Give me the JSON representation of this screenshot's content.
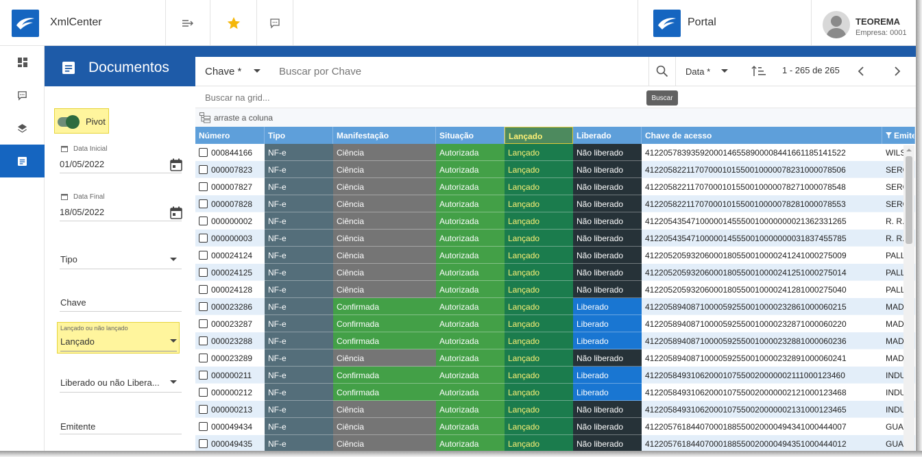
{
  "topbar": {
    "app_title": "XmlCenter",
    "portal_title": "Portal",
    "user_name": "TEOREMA",
    "user_company": "Empresa: 0001"
  },
  "rail": {
    "items": [
      "dashboard-icon",
      "chat-icon",
      "layers-icon",
      "document-icon"
    ],
    "active_index": 3
  },
  "filters": {
    "header_title": "Documentos",
    "pivot_label": "Pivot",
    "pivot_on": true,
    "data_inicial_label": "Data Inicial",
    "data_inicial_value": "01/05/2022",
    "data_final_label": "Data Final",
    "data_final_value": "18/05/2022",
    "tipo_label": "Tipo",
    "chave_label": "Chave",
    "lancado_label": "Lançado ou não lançado",
    "lancado_value": "Lançado",
    "liberado_label": "Liberado ou não Libera...",
    "emitente_label": "Emitente"
  },
  "search": {
    "field_selector": "Chave *",
    "placeholder": "Buscar por Chave",
    "sort_field": "Data *",
    "pagination": "1 - 265 de 265",
    "tooltip": "Buscar",
    "grid_placeholder": "Buscar na grid...",
    "group_hint": "arraste a coluna"
  },
  "grid": {
    "columns": [
      "Número",
      "Tipo",
      "Manifestação",
      "Situação",
      "Lançado",
      "Liberado",
      "Chave de acesso",
      "Emitente"
    ],
    "rows": [
      [
        "000844166",
        "NF-e",
        "Ciência",
        "Autorizada",
        "Lançado",
        "Não liberado",
        "41220578393592000146558900008441661185141522",
        "WILS"
      ],
      [
        "000007823",
        "NF-e",
        "Ciência",
        "Autorizada",
        "Lançado",
        "Não liberado",
        "41220582211707000101550010000078231000078506",
        "SERG"
      ],
      [
        "000007827",
        "NF-e",
        "Ciência",
        "Autorizada",
        "Lançado",
        "Não liberado",
        "41220582211707000101550010000078271000078548",
        "SERG"
      ],
      [
        "000007828",
        "NF-e",
        "Ciência",
        "Autorizada",
        "Lançado",
        "Não liberado",
        "41220582211707000101550010000078281000078553",
        "SERG"
      ],
      [
        "000000002",
        "NF-e",
        "Ciência",
        "Autorizada",
        "Lançado",
        "Não liberado",
        "41220543547100000145550010000000021362331265",
        "R. R."
      ],
      [
        "000000003",
        "NF-e",
        "Ciência",
        "Autorizada",
        "Lançado",
        "Não liberado",
        "41220543547100000145550010000000031837455785",
        "R. R."
      ],
      [
        "000024124",
        "NF-e",
        "Ciência",
        "Autorizada",
        "Lançado",
        "Não liberado",
        "41220520593206000180550010000241241000275009",
        "PALL"
      ],
      [
        "000024125",
        "NF-e",
        "Ciência",
        "Autorizada",
        "Lançado",
        "Não liberado",
        "41220520593206000180550010000241251000275014",
        "PALL"
      ],
      [
        "000024128",
        "NF-e",
        "Ciência",
        "Autorizada",
        "Lançado",
        "Não liberado",
        "41220520593206000180550010000241281000275040",
        "PALL"
      ],
      [
        "000023286",
        "NF-e",
        "Confirmada",
        "Autorizada",
        "Lançado",
        "Liberado",
        "41220589408710000592550010000232861000060215",
        "MAD"
      ],
      [
        "000023287",
        "NF-e",
        "Confirmada",
        "Autorizada",
        "Lançado",
        "Liberado",
        "41220589408710000592550010000232871000060220",
        "MAD"
      ],
      [
        "000023288",
        "NF-e",
        "Confirmada",
        "Autorizada",
        "Lançado",
        "Liberado",
        "41220589408710000592550010000232881000060236",
        "MAD"
      ],
      [
        "000023289",
        "NF-e",
        "Ciência",
        "Autorizada",
        "Lançado",
        "Não liberado",
        "41220589408710000592550010000232891000060241",
        "MAD"
      ],
      [
        "000000211",
        "NF-e",
        "Confirmada",
        "Autorizada",
        "Lançado",
        "Liberado",
        "41220584931062000107550020000002111000123460",
        "INDU"
      ],
      [
        "000000212",
        "NF-e",
        "Confirmada",
        "Autorizada",
        "Lançado",
        "Liberado",
        "41220584931062000107550020000002121000123468",
        "INDU"
      ],
      [
        "000000213",
        "NF-e",
        "Ciência",
        "Autorizada",
        "Lançado",
        "Não liberado",
        "41220584931062000107550020000002131000123465",
        "INDU"
      ],
      [
        "000049434",
        "NF-e",
        "Ciência",
        "Autorizada",
        "Lançado",
        "Não liberado",
        "41220576184407000188550020000494341000444007",
        "GUAI"
      ],
      [
        "000049435",
        "NF-e",
        "Ciência",
        "Autorizada",
        "Lançado",
        "Não liberado",
        "41220576184407000188550020000494351000444012",
        "GUAI"
      ]
    ]
  },
  "colors": {
    "brand_blue": "#1565c0",
    "header_blue": "#1e5ba8",
    "grid_header": "#5e9fda",
    "tipo_bg": "#546e7a",
    "ciencia_bg": "#757575",
    "confirmada_bg": "#43a047",
    "autorizada_bg": "#43a047",
    "lancado_bg": "#1b7c4d",
    "lancado_text": "#fff176",
    "nao_liberado_bg": "#263238",
    "liberado_bg": "#1976d2",
    "highlight": "#fff59d"
  }
}
